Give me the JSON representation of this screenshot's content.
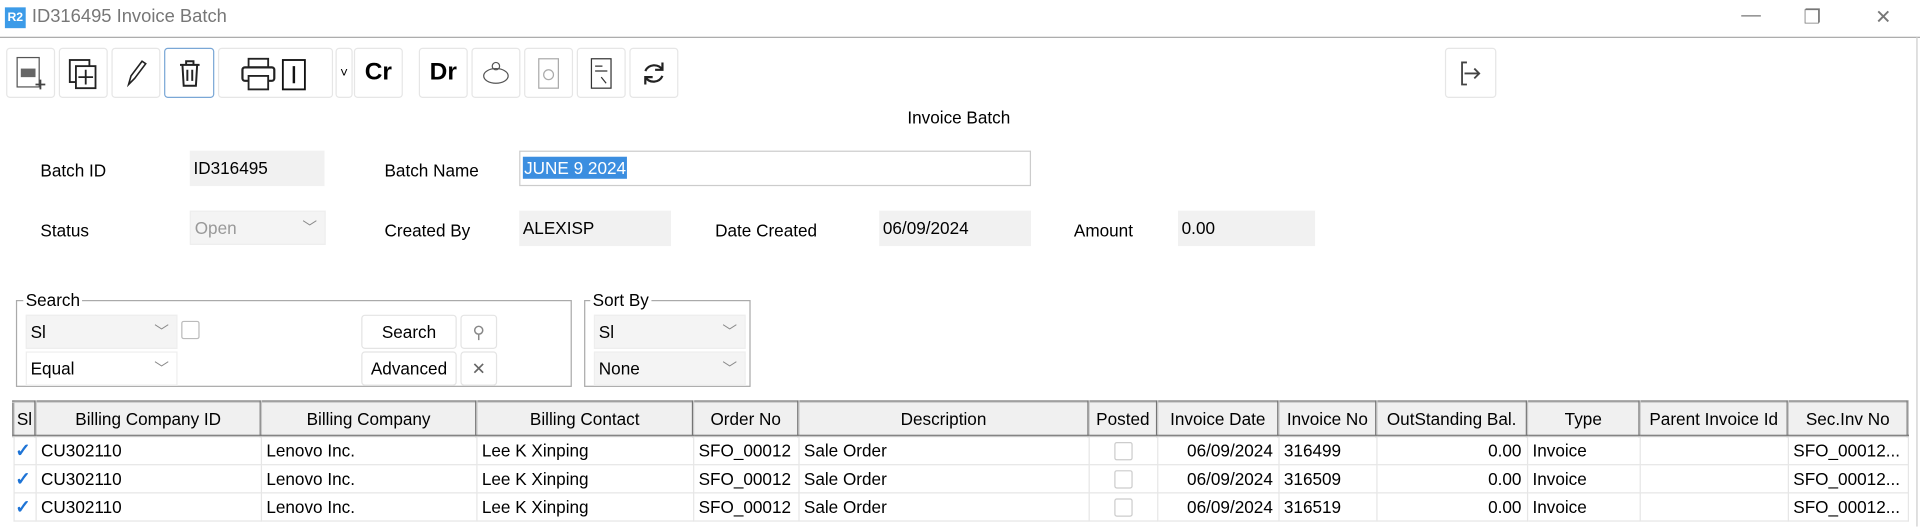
{
  "window": {
    "logo": "R2",
    "title": "ID316495 Invoice Batch",
    "minimize": "—",
    "restore": "❐",
    "close": "✕"
  },
  "toolbar": {
    "cr_label": "Cr",
    "dr_label": "Dr",
    "dropdown": "˅"
  },
  "form": {
    "heading": "Invoice Batch",
    "batch_id_label": "Batch ID",
    "batch_id": "ID316495",
    "batch_name_label": "Batch Name",
    "batch_name": "JUNE 9 2024",
    "status_label": "Status",
    "status": "Open",
    "created_by_label": "Created By",
    "created_by": "ALEXISP",
    "date_created_label": "Date Created",
    "date_created": "06/09/2024",
    "amount_label": "Amount",
    "amount": "0.00"
  },
  "search": {
    "legend": "Search",
    "field": "Sl",
    "operator": "Equal",
    "search_label": "Search",
    "advanced_label": "Advanced",
    "search_icon": "🔍",
    "clear_icon": "✕"
  },
  "sort": {
    "legend": "Sort By",
    "field": "Sl",
    "order": "None"
  },
  "table": {
    "columns": [
      "Sl",
      "Billing Company ID",
      "Billing Company",
      "Billing Contact",
      "Order No",
      "Description",
      "Posted",
      "Invoice Date",
      "Invoice No",
      "OutStanding Bal.",
      "Type",
      "Parent Invoice Id",
      "Sec.Inv No"
    ],
    "rows": [
      {
        "selected": true,
        "billing_company_id": "CU302110",
        "billing_company": "Lenovo Inc.",
        "billing_contact": "Lee K Xinping",
        "order_no": "SFO_00012",
        "description": "Sale Order",
        "posted": false,
        "invoice_date": "06/09/2024",
        "invoice_no": "316499",
        "outstanding": "0.00",
        "type": "Invoice",
        "parent_invoice_id": "",
        "sec_inv_no": "SFO_00012..."
      },
      {
        "selected": true,
        "billing_company_id": "CU302110",
        "billing_company": "Lenovo Inc.",
        "billing_contact": "Lee K Xinping",
        "order_no": "SFO_00012",
        "description": "Sale Order",
        "posted": false,
        "invoice_date": "06/09/2024",
        "invoice_no": "316509",
        "outstanding": "0.00",
        "type": "Invoice",
        "parent_invoice_id": "",
        "sec_inv_no": "SFO_00012..."
      },
      {
        "selected": true,
        "billing_company_id": "CU302110",
        "billing_company": "Lenovo Inc.",
        "billing_contact": "Lee K Xinping",
        "order_no": "SFO_00012",
        "description": "Sale Order",
        "posted": false,
        "invoice_date": "06/09/2024",
        "invoice_no": "316519",
        "outstanding": "0.00",
        "type": "Invoice",
        "parent_invoice_id": "",
        "sec_inv_no": "SFO_00012..."
      }
    ]
  },
  "colors": {
    "accent": "#3c9be8",
    "selection": "#3b8ee0"
  }
}
